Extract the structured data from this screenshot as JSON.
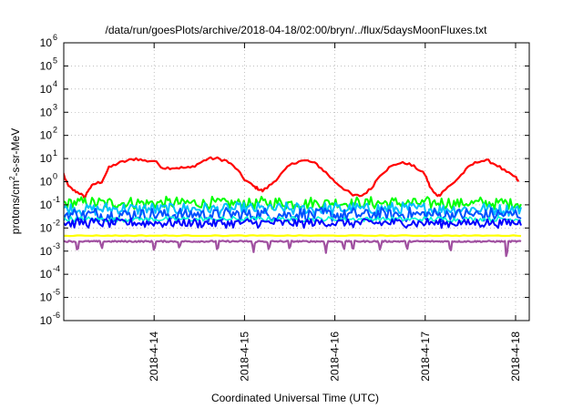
{
  "chart_data": {
    "type": "line",
    "title": "/data/run/goesPlots/archive/2018-04-18/02:00/bryn/../flux/5daysMoonFluxes.txt",
    "xlabel": "Coordinated Universal Time (UTC)",
    "ylabel": {
      "base": "protons/cm",
      "sup": "2",
      "rest": "-s-sr-MeV"
    },
    "yscale": "log",
    "ylim": [
      -6,
      6
    ],
    "y_tick_exponents": [
      -6,
      -5,
      -4,
      -3,
      -2,
      -1,
      0,
      1,
      2,
      3,
      4,
      5,
      6
    ],
    "xlim": [
      "2018-04-13 02:00",
      "2018-04-18 02:00"
    ],
    "x_ticks": [
      {
        "label": "2018-4-14",
        "day": 1
      },
      {
        "label": "2018-4-15",
        "day": 2
      },
      {
        "label": "2018-4-16",
        "day": 3
      },
      {
        "label": "2018-4-17",
        "day": 4
      },
      {
        "label": "2018-4-18",
        "day": 5
      }
    ],
    "grid": true,
    "series": [
      {
        "color": "#ff0000",
        "width": 2.2,
        "kind": "smooth",
        "points": [
          [
            -0.08,
            0.7
          ],
          [
            -0.02,
            0.5
          ],
          [
            0.05,
            -0.2
          ],
          [
            0.12,
            -0.4
          ],
          [
            0.18,
            -0.5
          ],
          [
            0.23,
            -0.7
          ],
          [
            0.28,
            -0.3
          ],
          [
            0.34,
            -0.1
          ],
          [
            0.42,
            0.0
          ],
          [
            0.5,
            0.6
          ],
          [
            0.6,
            0.8
          ],
          [
            0.7,
            0.9
          ],
          [
            0.8,
            1.0
          ],
          [
            0.9,
            0.9
          ],
          [
            1.0,
            0.9
          ],
          [
            1.1,
            0.6
          ],
          [
            1.2,
            0.6
          ],
          [
            1.3,
            0.6
          ],
          [
            1.4,
            0.6
          ],
          [
            1.5,
            0.8
          ],
          [
            1.6,
            1.0
          ],
          [
            1.7,
            1.0
          ],
          [
            1.8,
            0.9
          ],
          [
            1.9,
            0.6
          ],
          [
            2.0,
            0.1
          ],
          [
            2.1,
            -0.2
          ],
          [
            2.15,
            -0.3
          ],
          [
            2.2,
            -0.4
          ],
          [
            2.3,
            -0.1
          ],
          [
            2.4,
            0.3
          ],
          [
            2.5,
            0.7
          ],
          [
            2.6,
            0.9
          ],
          [
            2.7,
            0.9
          ],
          [
            2.8,
            0.75
          ],
          [
            2.9,
            0.4
          ],
          [
            3.0,
            0.0
          ],
          [
            3.1,
            -0.3
          ],
          [
            3.2,
            -0.6
          ],
          [
            3.3,
            -0.6
          ],
          [
            3.4,
            -0.3
          ],
          [
            3.5,
            0.3
          ],
          [
            3.6,
            0.6
          ],
          [
            3.7,
            0.8
          ],
          [
            3.8,
            0.8
          ],
          [
            3.9,
            0.6
          ],
          [
            4.0,
            0.3
          ],
          [
            4.05,
            -0.2
          ],
          [
            4.1,
            -0.5
          ],
          [
            4.15,
            -0.6
          ],
          [
            4.2,
            -0.4
          ],
          [
            4.3,
            -0.1
          ],
          [
            4.4,
            0.3
          ],
          [
            4.5,
            0.7
          ],
          [
            4.6,
            0.9
          ],
          [
            4.7,
            0.9
          ],
          [
            4.8,
            0.7
          ],
          [
            4.9,
            0.4
          ],
          [
            5.0,
            0.2
          ],
          [
            5.03,
            0.0
          ]
        ]
      },
      {
        "color": "#00ff00",
        "width": 2,
        "kind": "noise",
        "level": -0.92,
        "amp": 0.28
      },
      {
        "color": "#00bfff",
        "width": 2,
        "kind": "noise",
        "level": -1.18,
        "amp": 0.3
      },
      {
        "color": "#0050ff",
        "width": 2,
        "kind": "noise",
        "level": -1.42,
        "amp": 0.32
      },
      {
        "color": "#00ffd0",
        "width": 1.6,
        "kind": "noise",
        "level": -1.62,
        "amp": 0.12
      },
      {
        "color": "#0000ff",
        "width": 2,
        "kind": "noise",
        "level": -1.78,
        "amp": 0.22
      },
      {
        "color": "#ffff00",
        "width": 2.2,
        "kind": "flat",
        "level": -2.33
      },
      {
        "color": "#a050a0",
        "width": 2.2,
        "kind": "dips",
        "level": -2.58,
        "dips": [
          [
            0.15,
            -0.5
          ],
          [
            0.42,
            -0.35
          ],
          [
            1.0,
            -0.45
          ],
          [
            1.28,
            -0.35
          ],
          [
            1.7,
            -0.45
          ],
          [
            2.1,
            -0.5
          ],
          [
            2.27,
            -0.45
          ],
          [
            2.5,
            -0.4
          ],
          [
            2.9,
            -0.5
          ],
          [
            3.1,
            -0.4
          ],
          [
            3.2,
            -0.45
          ],
          [
            3.5,
            -0.4
          ],
          [
            3.8,
            -0.4
          ],
          [
            4.28,
            -0.5
          ],
          [
            4.9,
            -0.85
          ]
        ]
      }
    ]
  }
}
